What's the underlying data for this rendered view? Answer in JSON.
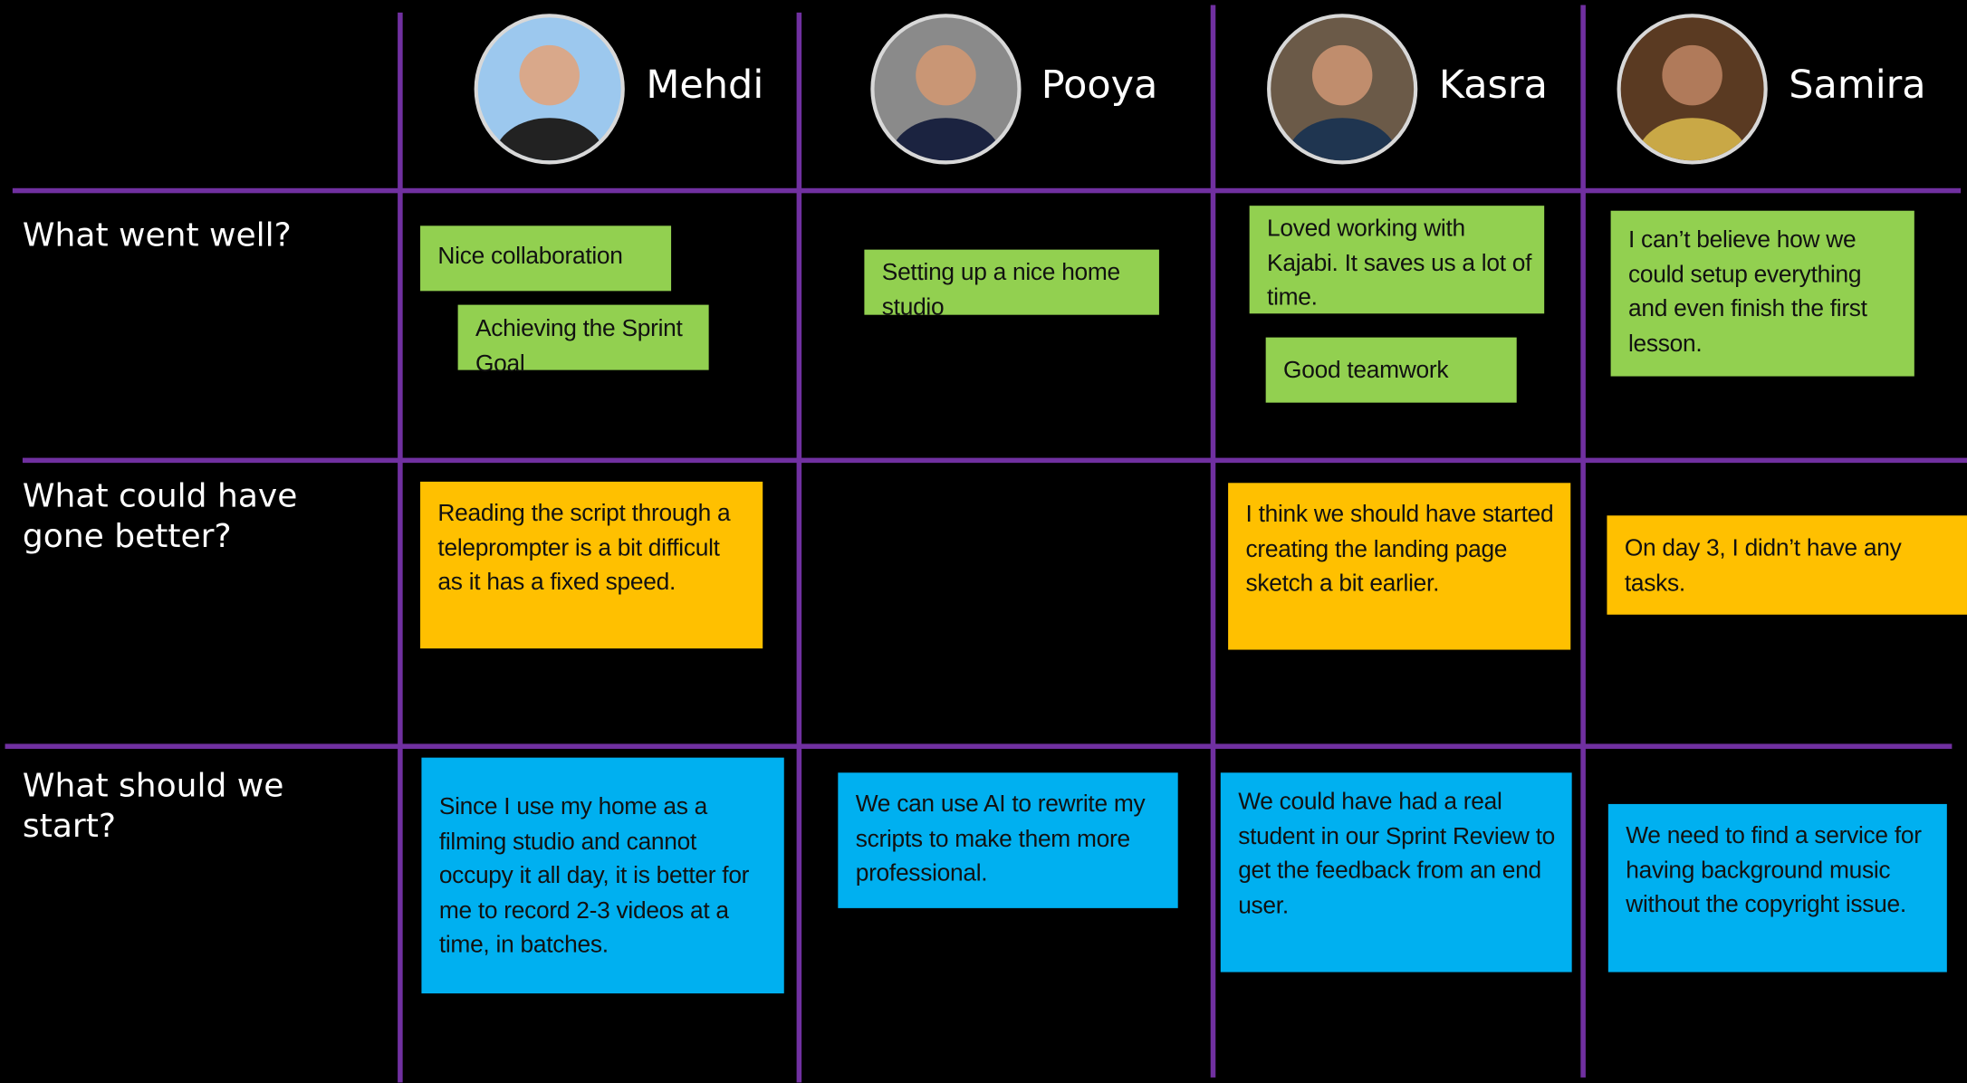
{
  "columns": [
    {
      "name": "Mehdi"
    },
    {
      "name": "Pooya"
    },
    {
      "name": "Kasra"
    },
    {
      "name": "Samira"
    }
  ],
  "rows": [
    {
      "label": "What went well?",
      "cells": [
        [
          "Nice collaboration",
          "Achieving the Sprint Goal"
        ],
        [
          "Setting up a nice home studio"
        ],
        [
          "Loved working with Kajabi. It saves us a lot of time.",
          "Good teamwork"
        ],
        [
          "I can’t believe how we could setup everything and even finish the first lesson."
        ]
      ]
    },
    {
      "label": "What could have gone better?",
      "cells": [
        [
          "Reading the script through a teleprompter is a bit difficult as it has a fixed speed."
        ],
        [],
        [
          "I think we should have started creating the landing page sketch a bit earlier."
        ],
        [
          "On day 3, I didn’t have any tasks."
        ]
      ]
    },
    {
      "label": "What should we start?",
      "cells": [
        [
          "Since I use my home as a filming studio and cannot occupy it all day, it is better for me to record 2-3 videos at a time, in batches."
        ],
        [
          "We can use AI to rewrite my scripts to make them more professional."
        ],
        [
          "We could have had a real student in our Sprint Review to get the feedback from an end user."
        ],
        [
          "We need to find a service for having background music without the copyright issue."
        ]
      ]
    }
  ]
}
